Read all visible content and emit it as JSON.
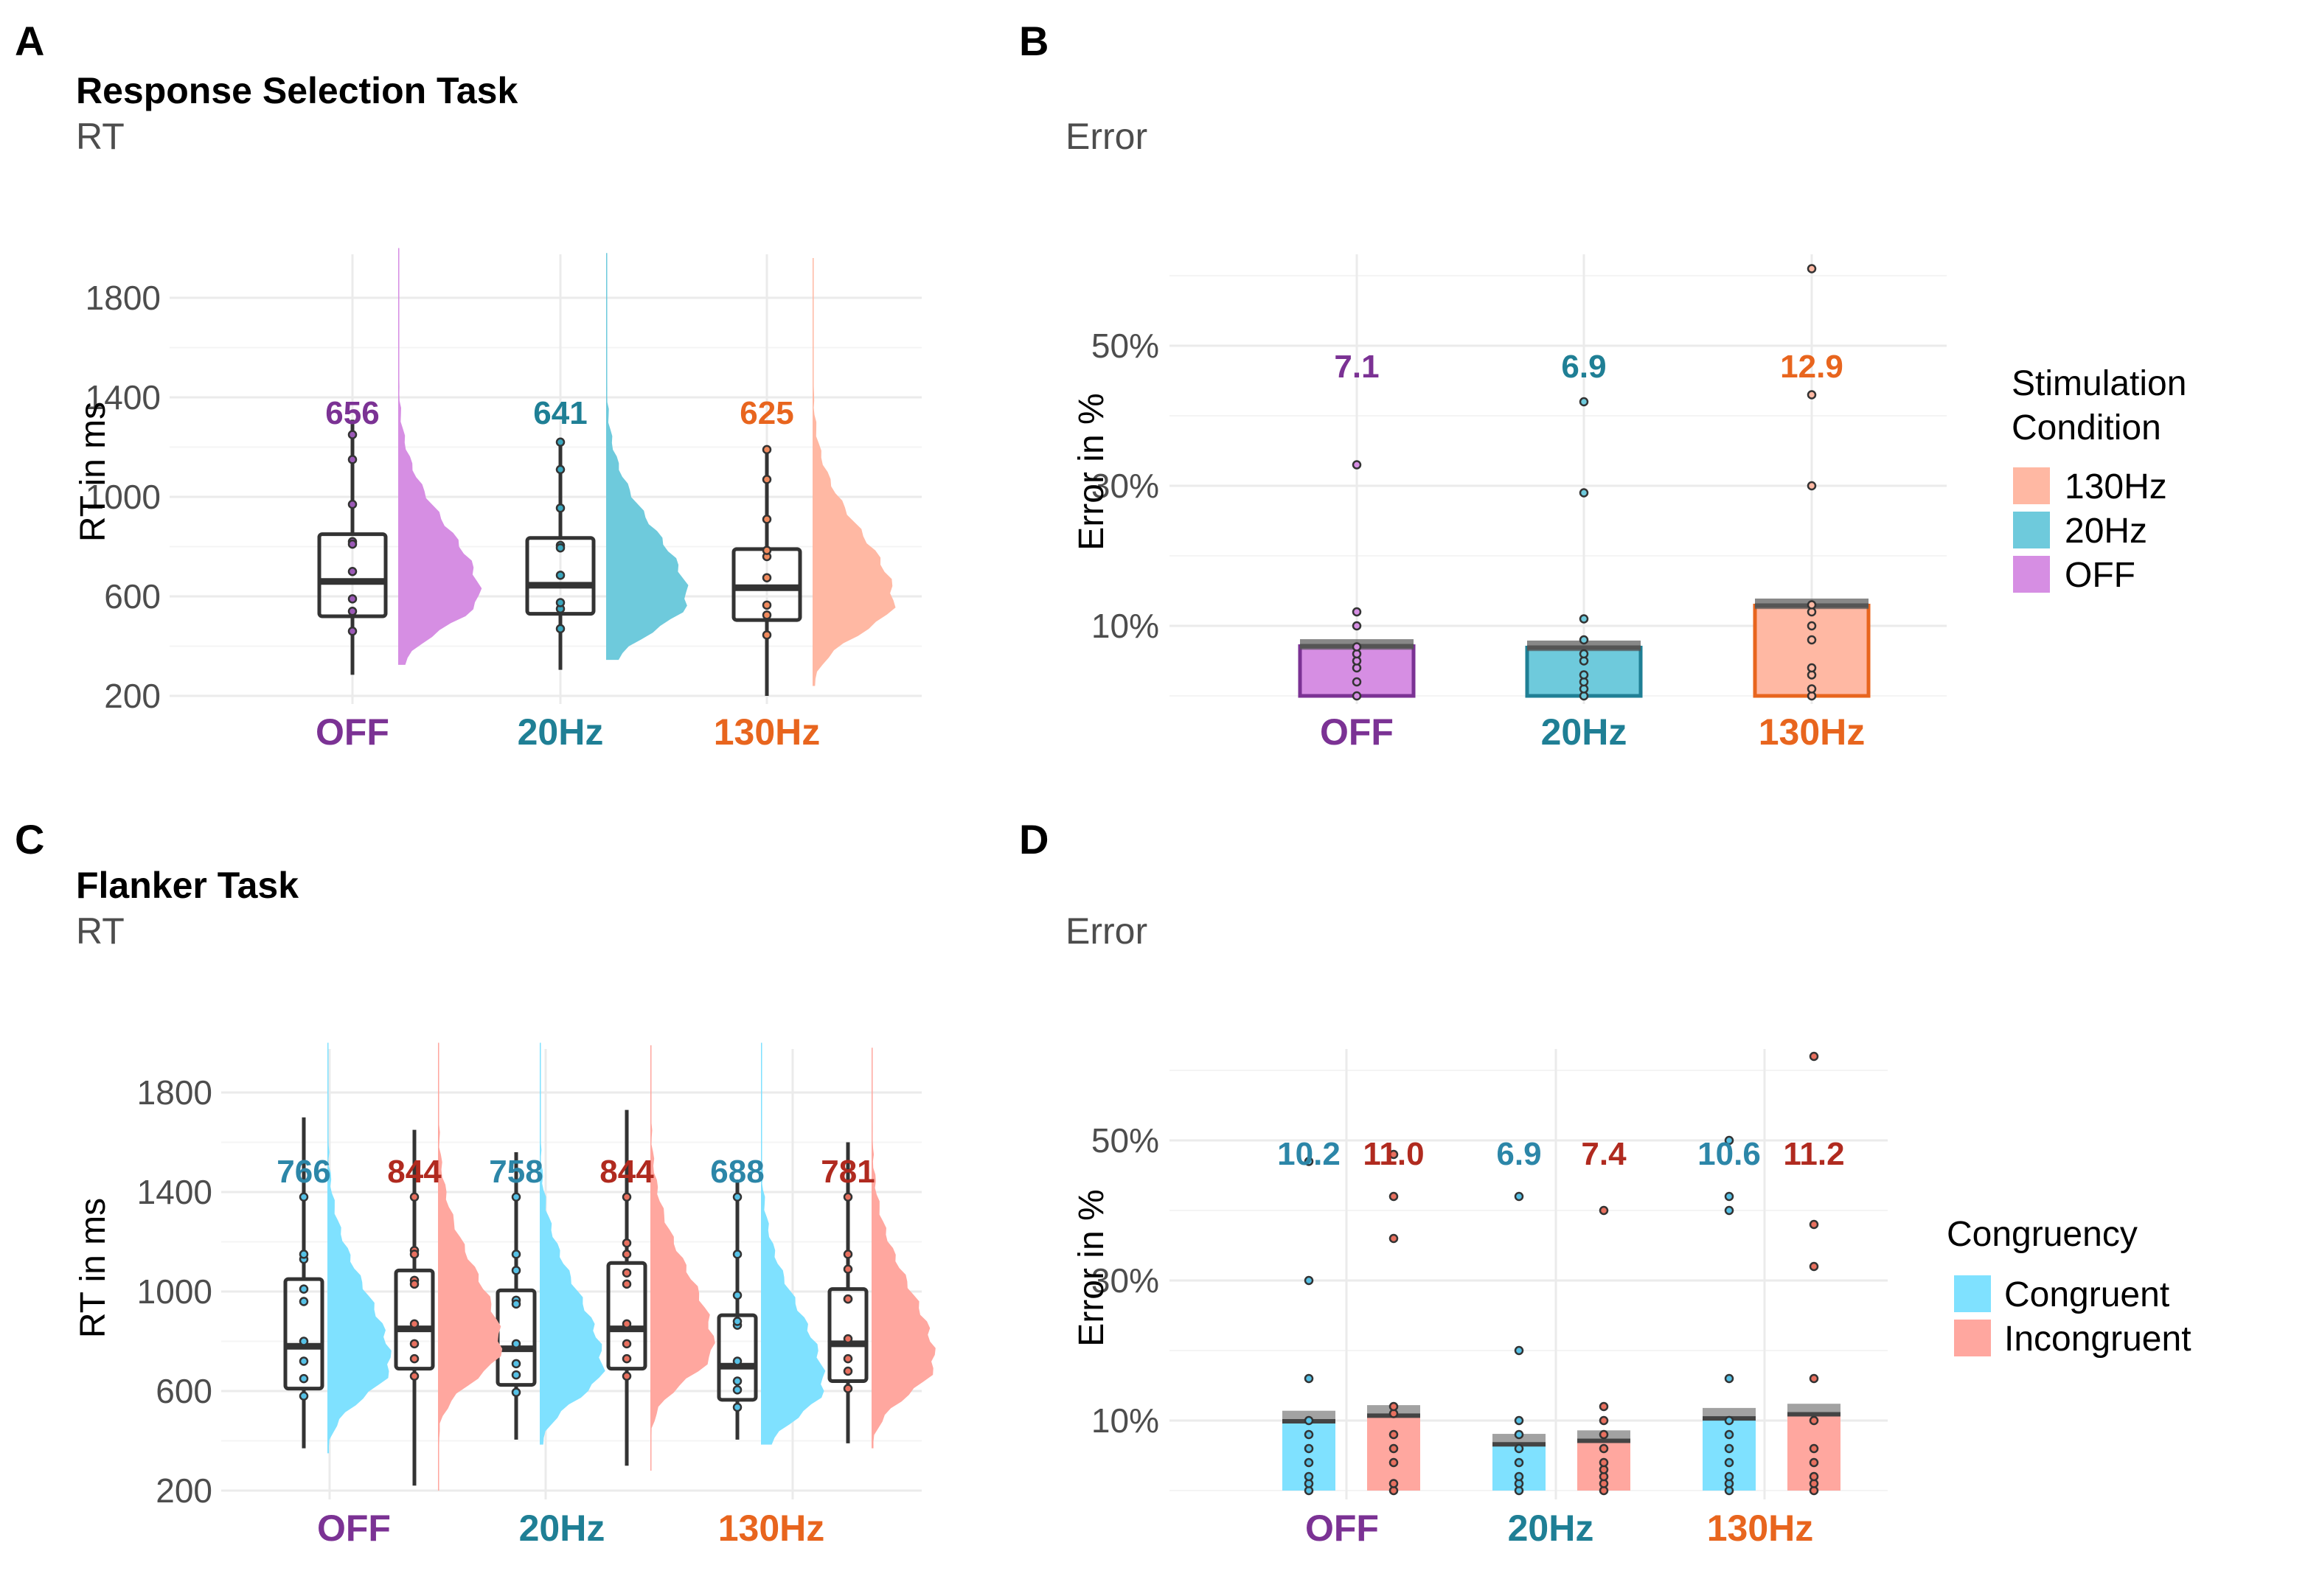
{
  "panels": [
    {
      "letter": "A",
      "title": "Response Selection Task",
      "subtitle": "RT",
      "ylabel": "RT in ms",
      "yticks": [
        "1800",
        "1400",
        "1000",
        "600",
        "200"
      ]
    },
    {
      "letter": "B",
      "title": "",
      "subtitle": "Error",
      "ylabel": "Error in %",
      "yticks": [
        "50%",
        "30%",
        "10%"
      ]
    },
    {
      "letter": "C",
      "title": "Flanker Task",
      "subtitle": "RT",
      "ylabel": "RT in ms",
      "yticks": [
        "1800",
        "1400",
        "1000",
        "600",
        "200"
      ]
    },
    {
      "letter": "D",
      "title": "",
      "subtitle": "Error",
      "ylabel": "Error in %",
      "yticks": [
        "50%",
        "30%",
        "10%"
      ]
    }
  ],
  "legends": [
    {
      "title_lines": [
        "Stimulation",
        "Condition"
      ],
      "items": [
        {
          "label": "130Hz",
          "color": "#FFB8A3"
        },
        {
          "label": "20Hz",
          "color": "#6ECADC"
        },
        {
          "label": "OFF",
          "color": "#D68EE3"
        }
      ]
    },
    {
      "title_lines": [
        "Congruency"
      ],
      "items": [
        {
          "label": "Congruent",
          "color": "#7FE1FF"
        },
        {
          "label": "Incongruent",
          "color": "#FFA79F"
        }
      ]
    }
  ],
  "colors": {
    "off": "#7B3294",
    "hz20": "#1F7F95",
    "hz130": "#E8651E",
    "flanker_congruent_text": "#2C86A8",
    "flanker_incongruent_text": "#B02A1F"
  },
  "chart_data": [
    {
      "panel": "A",
      "type": "box-violin",
      "categories": [
        "OFF",
        "20Hz",
        "130Hz"
      ],
      "ylim": [
        200,
        2000
      ],
      "series": [
        {
          "name": "OFF",
          "q1": 520,
          "median": 660,
          "q3": 850,
          "whisker_low": 285,
          "whisker_high": 1310,
          "label": "656"
        },
        {
          "name": "20Hz",
          "q1": 530,
          "median": 645,
          "q3": 835,
          "whisker_low": 305,
          "whisker_high": 1230,
          "label": "641"
        },
        {
          "name": "130Hz",
          "q1": 505,
          "median": 635,
          "q3": 790,
          "whisker_low": 200,
          "whisker_high": 1200,
          "label": "625"
        }
      ]
    },
    {
      "panel": "B",
      "type": "bar",
      "categories": [
        "OFF",
        "20Hz",
        "130Hz"
      ],
      "values": [
        7.1,
        6.9,
        12.9
      ],
      "labels": [
        "7.1",
        "6.9",
        "12.9"
      ],
      "ylim": [
        0,
        62
      ]
    },
    {
      "panel": "C",
      "type": "box-violin",
      "categories": [
        "OFF",
        "20Hz",
        "130Hz"
      ],
      "series": [
        {
          "name": "Congruent",
          "boxes": [
            {
              "q1": 610,
              "median": 780,
              "q3": 1050,
              "whisker_low": 370,
              "whisker_high": 1700,
              "label": "766"
            },
            {
              "q1": 625,
              "median": 770,
              "q3": 1005,
              "whisker_low": 405,
              "whisker_high": 1560,
              "label": "758"
            },
            {
              "q1": 565,
              "median": 700,
              "q3": 905,
              "whisker_low": 405,
              "whisker_high": 1450,
              "label": "688"
            }
          ]
        },
        {
          "name": "Incongruent",
          "boxes": [
            {
              "q1": 690,
              "median": 850,
              "q3": 1085,
              "whisker_low": 220,
              "whisker_high": 1650,
              "label": "844"
            },
            {
              "q1": 690,
              "median": 850,
              "q3": 1115,
              "whisker_low": 300,
              "whisker_high": 1730,
              "label": "844"
            },
            {
              "q1": 640,
              "median": 790,
              "q3": 1010,
              "whisker_low": 390,
              "whisker_high": 1600,
              "label": "781"
            }
          ]
        }
      ],
      "ylim": [
        200,
        2000
      ]
    },
    {
      "panel": "D",
      "type": "bar",
      "categories": [
        "OFF",
        "20Hz",
        "130Hz"
      ],
      "series": [
        {
          "name": "Congruent",
          "values": [
            10.2,
            6.9,
            10.6
          ],
          "labels": [
            "10.2",
            "6.9",
            "10.6"
          ]
        },
        {
          "name": "Incongruent",
          "values": [
            11.0,
            7.4,
            11.2
          ],
          "labels": [
            "11.0",
            "7.4",
            "11.2"
          ]
        }
      ],
      "ylim": [
        0,
        62
      ]
    }
  ]
}
